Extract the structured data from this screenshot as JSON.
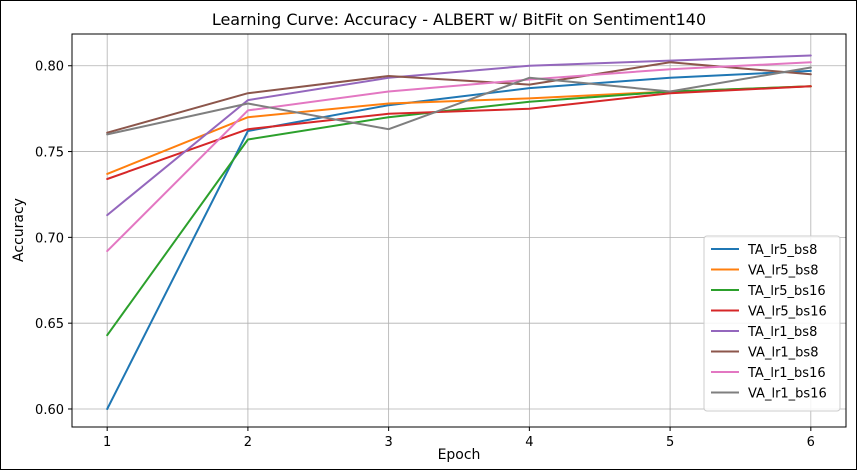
{
  "chart_data": {
    "type": "line",
    "title": "Learning Curve: Accuracy - ALBERT w/ BitFit on Sentiment140",
    "xlabel": "Epoch",
    "ylabel": "Accuracy",
    "x": [
      1,
      2,
      3,
      4,
      5,
      6
    ],
    "x_ticks": [
      "1",
      "2",
      "3",
      "4",
      "5",
      "6"
    ],
    "y_ticks": [
      "0.60",
      "0.65",
      "0.70",
      "0.75",
      "0.80"
    ],
    "xlim": [
      0.75,
      6.25
    ],
    "ylim": [
      0.5895,
      0.8185
    ],
    "grid": true,
    "legend_position": "lower right",
    "series": [
      {
        "name": "TA_lr5_bs8",
        "color": "#1f77b4",
        "values": [
          0.6,
          0.762,
          0.777,
          0.787,
          0.793,
          0.797
        ]
      },
      {
        "name": "VA_lr5_bs8",
        "color": "#ff7f0e",
        "values": [
          0.737,
          0.77,
          0.778,
          0.781,
          0.785,
          0.788
        ]
      },
      {
        "name": "TA_lr5_bs16",
        "color": "#2ca02c",
        "values": [
          0.643,
          0.757,
          0.77,
          0.779,
          0.785,
          0.788
        ]
      },
      {
        "name": "VA_lr5_bs16",
        "color": "#d62728",
        "values": [
          0.734,
          0.763,
          0.772,
          0.775,
          0.784,
          0.788
        ]
      },
      {
        "name": "TA_lr1_bs8",
        "color": "#9467bd",
        "values": [
          0.713,
          0.78,
          0.793,
          0.8,
          0.803,
          0.806
        ]
      },
      {
        "name": "VA_lr1_bs8",
        "color": "#8c564b",
        "values": [
          0.761,
          0.784,
          0.794,
          0.789,
          0.802,
          0.795
        ]
      },
      {
        "name": "TA_lr1_bs16",
        "color": "#e377c2",
        "values": [
          0.692,
          0.774,
          0.785,
          0.792,
          0.798,
          0.802
        ]
      },
      {
        "name": "VA_lr1_bs16",
        "color": "#7f7f7f",
        "values": [
          0.76,
          0.778,
          0.763,
          0.793,
          0.785,
          0.799
        ]
      }
    ]
  }
}
